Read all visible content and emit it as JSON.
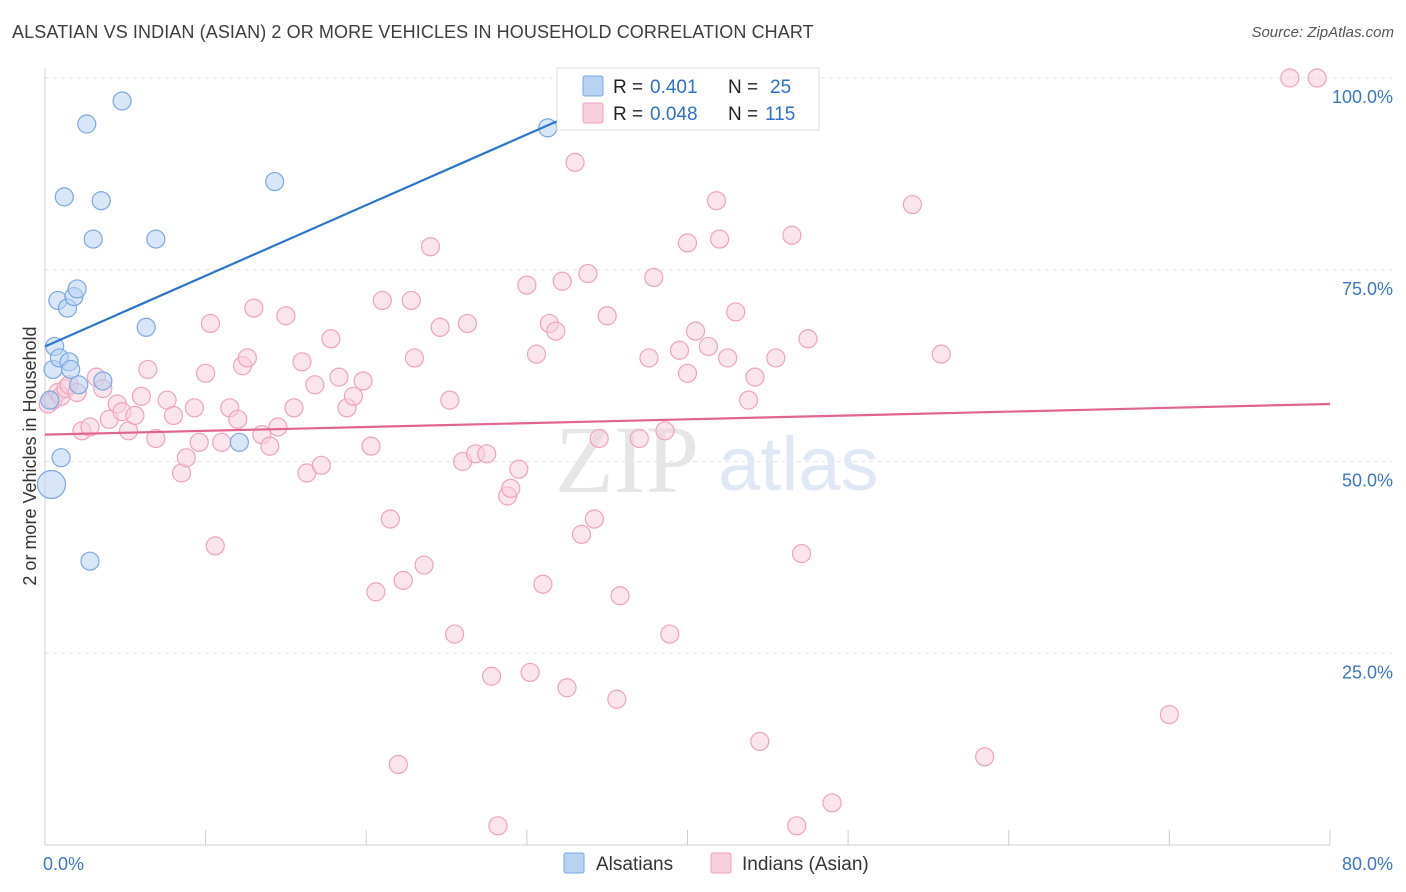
{
  "chart_data": {
    "type": "scatter",
    "title": "ALSATIAN VS INDIAN (ASIAN) 2 OR MORE VEHICLES IN HOUSEHOLD CORRELATION CHART",
    "source": "Source: ZipAtlas.com",
    "xlabel": "",
    "ylabel": "2 or more Vehicles in Household",
    "xlim": [
      0,
      80
    ],
    "ylim": [
      0,
      100
    ],
    "x_tick_labels": [
      "0.0%",
      "80.0%"
    ],
    "y_ticks": [
      {
        "value": 25,
        "label": "25.0%"
      },
      {
        "value": 50,
        "label": "50.0%"
      },
      {
        "value": 75,
        "label": "75.0%"
      },
      {
        "value": 100,
        "label": "100.0%"
      }
    ],
    "grid": true,
    "watermark": {
      "part1": "ZIP",
      "part2": "atlas"
    },
    "legend": {
      "series": [
        {
          "r_label": "R =",
          "r_value": "0.401",
          "n_label": "N =",
          "n_value": "25"
        },
        {
          "r_label": "R =",
          "r_value": "0.048",
          "n_label": "N =",
          "n_value": "115"
        }
      ]
    },
    "series": [
      {
        "name": "Alsatians",
        "color": "#7aa8e0",
        "fill": "#b8d2f2",
        "line_color": "#2b74cc",
        "trend": {
          "x0": 0,
          "y0": 65.0,
          "x1": 38,
          "y1": 100.0
        },
        "points": [
          {
            "x": 0.3,
            "y": 58
          },
          {
            "x": 0.4,
            "y": 47,
            "big": true
          },
          {
            "x": 0.5,
            "y": 62
          },
          {
            "x": 0.6,
            "y": 65
          },
          {
            "x": 0.8,
            "y": 71
          },
          {
            "x": 0.9,
            "y": 63.5
          },
          {
            "x": 1.0,
            "y": 50.5
          },
          {
            "x": 1.2,
            "y": 84.5
          },
          {
            "x": 1.4,
            "y": 70
          },
          {
            "x": 1.5,
            "y": 63
          },
          {
            "x": 1.6,
            "y": 62
          },
          {
            "x": 1.8,
            "y": 71.5
          },
          {
            "x": 2.0,
            "y": 72.5
          },
          {
            "x": 2.1,
            "y": 60
          },
          {
            "x": 2.6,
            "y": 94
          },
          {
            "x": 2.8,
            "y": 37
          },
          {
            "x": 3.0,
            "y": 79
          },
          {
            "x": 3.5,
            "y": 84
          },
          {
            "x": 3.6,
            "y": 60.5
          },
          {
            "x": 4.8,
            "y": 97
          },
          {
            "x": 6.3,
            "y": 67.5
          },
          {
            "x": 6.9,
            "y": 79
          },
          {
            "x": 12.1,
            "y": 52.5
          },
          {
            "x": 14.3,
            "y": 86.5
          },
          {
            "x": 31.3,
            "y": 93.5
          }
        ]
      },
      {
        "name": "Indians (Asian)",
        "color": "#eea3bd",
        "fill": "#f8cfdd",
        "line_color": "#e0648f",
        "trend": {
          "x0": 0,
          "y0": 53.5,
          "x1": 80,
          "y1": 57.5
        },
        "points": [
          {
            "x": 0.2,
            "y": 57.5
          },
          {
            "x": 0.5,
            "y": 58
          },
          {
            "x": 0.8,
            "y": 59
          },
          {
            "x": 1.0,
            "y": 58.5
          },
          {
            "x": 1.3,
            "y": 59.5
          },
          {
            "x": 1.5,
            "y": 60
          },
          {
            "x": 2.0,
            "y": 59
          },
          {
            "x": 2.3,
            "y": 54
          },
          {
            "x": 2.8,
            "y": 54.5
          },
          {
            "x": 3.2,
            "y": 61
          },
          {
            "x": 3.6,
            "y": 59.5
          },
          {
            "x": 4.0,
            "y": 55.5
          },
          {
            "x": 4.5,
            "y": 57.5
          },
          {
            "x": 4.8,
            "y": 56.5
          },
          {
            "x": 5.2,
            "y": 54
          },
          {
            "x": 5.6,
            "y": 56
          },
          {
            "x": 6.0,
            "y": 58.5
          },
          {
            "x": 6.4,
            "y": 62
          },
          {
            "x": 6.9,
            "y": 53
          },
          {
            "x": 7.6,
            "y": 58
          },
          {
            "x": 8.0,
            "y": 56
          },
          {
            "x": 8.5,
            "y": 48.5
          },
          {
            "x": 8.8,
            "y": 50.5
          },
          {
            "x": 9.3,
            "y": 57
          },
          {
            "x": 9.6,
            "y": 52.5
          },
          {
            "x": 10.0,
            "y": 61.5
          },
          {
            "x": 10.3,
            "y": 68
          },
          {
            "x": 10.6,
            "y": 39
          },
          {
            "x": 11.0,
            "y": 52.5
          },
          {
            "x": 11.5,
            "y": 57
          },
          {
            "x": 12.0,
            "y": 55.5
          },
          {
            "x": 12.3,
            "y": 62.5
          },
          {
            "x": 12.6,
            "y": 63.5
          },
          {
            "x": 13.0,
            "y": 70
          },
          {
            "x": 13.5,
            "y": 53.5
          },
          {
            "x": 14.0,
            "y": 52
          },
          {
            "x": 14.5,
            "y": 54.5
          },
          {
            "x": 15.0,
            "y": 69
          },
          {
            "x": 15.5,
            "y": 57
          },
          {
            "x": 16.0,
            "y": 63
          },
          {
            "x": 16.3,
            "y": 48.5
          },
          {
            "x": 16.8,
            "y": 60
          },
          {
            "x": 17.2,
            "y": 49.5
          },
          {
            "x": 17.8,
            "y": 66
          },
          {
            "x": 18.3,
            "y": 61
          },
          {
            "x": 18.8,
            "y": 57
          },
          {
            "x": 19.2,
            "y": 58.5
          },
          {
            "x": 19.8,
            "y": 60.5
          },
          {
            "x": 20.3,
            "y": 52
          },
          {
            "x": 20.6,
            "y": 33
          },
          {
            "x": 21.0,
            "y": 71
          },
          {
            "x": 21.5,
            "y": 42.5
          },
          {
            "x": 22.0,
            "y": 10.5
          },
          {
            "x": 22.3,
            "y": 34.5
          },
          {
            "x": 22.8,
            "y": 71
          },
          {
            "x": 23.0,
            "y": 63.5
          },
          {
            "x": 23.6,
            "y": 36.5
          },
          {
            "x": 24.0,
            "y": 78
          },
          {
            "x": 24.6,
            "y": 67.5
          },
          {
            "x": 25.2,
            "y": 58
          },
          {
            "x": 25.5,
            "y": 27.5
          },
          {
            "x": 26.0,
            "y": 50
          },
          {
            "x": 26.3,
            "y": 68
          },
          {
            "x": 26.8,
            "y": 51
          },
          {
            "x": 27.5,
            "y": 51
          },
          {
            "x": 27.8,
            "y": 22
          },
          {
            "x": 28.2,
            "y": 2.5
          },
          {
            "x": 28.8,
            "y": 45.5
          },
          {
            "x": 29.0,
            "y": 46.5
          },
          {
            "x": 29.5,
            "y": 49
          },
          {
            "x": 30.0,
            "y": 73
          },
          {
            "x": 30.2,
            "y": 22.5
          },
          {
            "x": 30.6,
            "y": 64
          },
          {
            "x": 31.0,
            "y": 34
          },
          {
            "x": 31.4,
            "y": 68
          },
          {
            "x": 31.8,
            "y": 67
          },
          {
            "x": 32.2,
            "y": 73.5
          },
          {
            "x": 32.5,
            "y": 20.5
          },
          {
            "x": 33.0,
            "y": 89
          },
          {
            "x": 33.4,
            "y": 40.5
          },
          {
            "x": 33.8,
            "y": 74.5
          },
          {
            "x": 34.2,
            "y": 42.5
          },
          {
            "x": 34.5,
            "y": 53
          },
          {
            "x": 35.0,
            "y": 69
          },
          {
            "x": 35.6,
            "y": 19
          },
          {
            "x": 35.8,
            "y": 32.5
          },
          {
            "x": 37.0,
            "y": 53
          },
          {
            "x": 37.6,
            "y": 63.5
          },
          {
            "x": 37.9,
            "y": 74
          },
          {
            "x": 38.6,
            "y": 54
          },
          {
            "x": 38.9,
            "y": 27.5
          },
          {
            "x": 39.5,
            "y": 64.5
          },
          {
            "x": 40.0,
            "y": 61.5
          },
          {
            "x": 40.5,
            "y": 67
          },
          {
            "x": 40.0,
            "y": 78.5
          },
          {
            "x": 41.3,
            "y": 65
          },
          {
            "x": 41.8,
            "y": 84
          },
          {
            "x": 42.0,
            "y": 79
          },
          {
            "x": 42.5,
            "y": 63.5
          },
          {
            "x": 43.0,
            "y": 69.5
          },
          {
            "x": 43.8,
            "y": 58
          },
          {
            "x": 44.2,
            "y": 61
          },
          {
            "x": 44.5,
            "y": 13.5
          },
          {
            "x": 45.5,
            "y": 63.5
          },
          {
            "x": 46.5,
            "y": 79.5
          },
          {
            "x": 46.8,
            "y": 2.5
          },
          {
            "x": 47.1,
            "y": 38
          },
          {
            "x": 47.5,
            "y": 66
          },
          {
            "x": 49.0,
            "y": 5.5
          },
          {
            "x": 54.0,
            "y": 83.5
          },
          {
            "x": 55.8,
            "y": 64
          },
          {
            "x": 58.5,
            "y": 11.5
          },
          {
            "x": 70.0,
            "y": 17
          },
          {
            "x": 77.5,
            "y": 100
          },
          {
            "x": 79.2,
            "y": 100
          }
        ]
      }
    ]
  }
}
